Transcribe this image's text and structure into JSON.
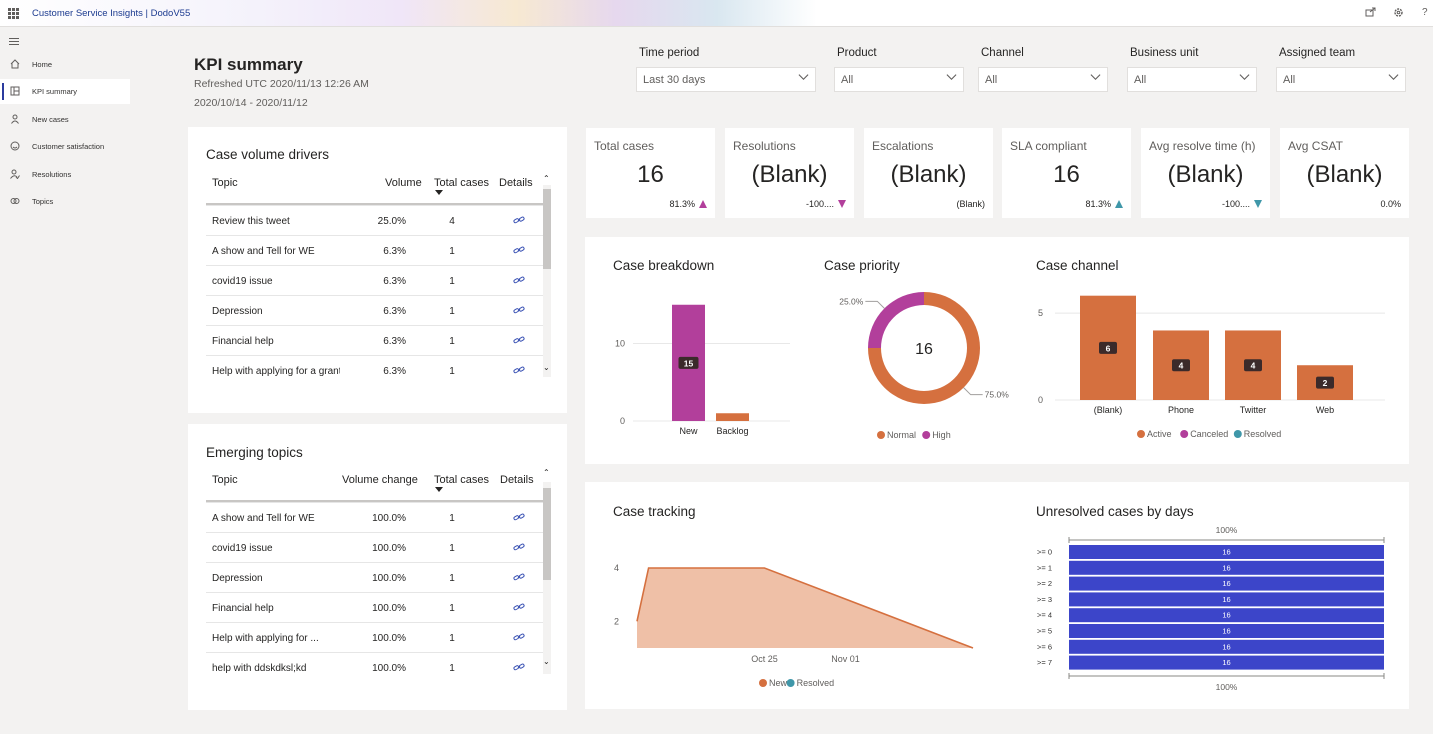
{
  "app": {
    "title": "Customer Service Insights | DodoV55",
    "icons": [
      "waffle-icon",
      "share-icon",
      "settings-icon",
      "help-icon"
    ],
    "help_glyph": "?"
  },
  "sidebar": {
    "items": [
      {
        "label": "Home",
        "icon": "home-icon",
        "active": false
      },
      {
        "label": "KPI summary",
        "icon": "dashboard-icon",
        "active": true
      },
      {
        "label": "New cases",
        "icon": "person-icon",
        "active": false
      },
      {
        "label": "Customer satisfaction",
        "icon": "smiley-icon",
        "active": false
      },
      {
        "label": "Resolutions",
        "icon": "person-check-icon",
        "active": false
      },
      {
        "label": "Topics",
        "icon": "topics-icon",
        "active": false
      }
    ]
  },
  "header": {
    "title": "KPI summary",
    "refreshed": "Refreshed UTC 2020/11/13 12:26 AM",
    "date_range": "2020/10/14 - 2020/11/12"
  },
  "filters": [
    {
      "label": "Time period",
      "value": "Last 30 days"
    },
    {
      "label": "Product",
      "value": "All"
    },
    {
      "label": "Channel",
      "value": "All"
    },
    {
      "label": "Business unit",
      "value": "All"
    },
    {
      "label": "Assigned team",
      "value": "All"
    }
  ],
  "case_volume_drivers": {
    "title": "Case volume drivers",
    "columns": [
      "Topic",
      "Volume",
      "Total cases",
      "Details"
    ],
    "rows": [
      {
        "topic": "Review this tweet",
        "volume": "25.0%",
        "total": "4"
      },
      {
        "topic": "A show and Tell for WE",
        "volume": "6.3%",
        "total": "1"
      },
      {
        "topic": "covid19 issue",
        "volume": "6.3%",
        "total": "1"
      },
      {
        "topic": "Depression",
        "volume": "6.3%",
        "total": "1"
      },
      {
        "topic": "Financial help",
        "volume": "6.3%",
        "total": "1"
      },
      {
        "topic": "Help with applying for a grant",
        "volume": "6.3%",
        "total": "1"
      }
    ]
  },
  "emerging_topics": {
    "title": "Emerging topics",
    "columns": [
      "Topic",
      "Volume change",
      "Total cases",
      "Details"
    ],
    "rows": [
      {
        "topic": "A show and Tell for WE",
        "volume": "100.0%",
        "total": "1"
      },
      {
        "topic": "covid19 issue",
        "volume": "100.0%",
        "total": "1"
      },
      {
        "topic": "Depression",
        "volume": "100.0%",
        "total": "1"
      },
      {
        "topic": "Financial help",
        "volume": "100.0%",
        "total": "1"
      },
      {
        "topic": "Help with applying for ...",
        "volume": "100.0%",
        "total": "1"
      },
      {
        "topic": "help with ddskdksl;kd",
        "volume": "100.0%",
        "total": "1"
      }
    ]
  },
  "kpis": [
    {
      "title": "Total cases",
      "value": "16",
      "trend": "81.3%",
      "arrow": "up",
      "arrow_color": "#b23f9b"
    },
    {
      "title": "Resolutions",
      "value": "(Blank)",
      "trend": "-100....",
      "arrow": "down",
      "arrow_color": "#b23f9b"
    },
    {
      "title": "Escalations",
      "value": "(Blank)",
      "trend": "(Blank)",
      "arrow": "none",
      "arrow_color": ""
    },
    {
      "title": "SLA compliant",
      "value": "16",
      "trend": "81.3%",
      "arrow": "up",
      "arrow_color": "#3f97a9"
    },
    {
      "title": "Avg resolve time (h)",
      "value": "(Blank)",
      "trend": "-100....",
      "arrow": "down",
      "arrow_color": "#3f97a9"
    },
    {
      "title": "Avg CSAT",
      "value": "(Blank)",
      "trend": "0.0%",
      "arrow": "none",
      "arrow_color": ""
    }
  ],
  "colors": {
    "orange": "#d5703f",
    "magenta": "#b23f9b",
    "teal": "#3f97a9",
    "blue_bar": "#3c45c9",
    "area_fill": "#efc0a7"
  },
  "chart_data": [
    {
      "type": "bar",
      "title": "Case breakdown",
      "categories": [
        "New",
        "Backlog"
      ],
      "values": [
        15,
        1
      ],
      "data_labels": [
        "15",
        ""
      ],
      "bar_colors": [
        "#b23f9b",
        "#d5703f"
      ],
      "yticks": [
        0,
        10
      ],
      "ylim": [
        0,
        16
      ],
      "grid": true
    },
    {
      "type": "pie",
      "title": "Case priority",
      "center_label": "16",
      "slices": [
        {
          "name": "Normal",
          "value": 75.0,
          "label": "75.0%",
          "color": "#d5703f"
        },
        {
          "name": "High",
          "value": 25.0,
          "label": "25.0%",
          "color": "#b23f9b"
        }
      ],
      "legend": [
        "Normal",
        "High"
      ],
      "legend_placement": "bottom"
    },
    {
      "type": "bar",
      "title": "Case channel",
      "categories": [
        "(Blank)",
        "Phone",
        "Twitter",
        "Web"
      ],
      "values": [
        6,
        4,
        4,
        2
      ],
      "data_labels": [
        "6",
        "4",
        "4",
        "2"
      ],
      "yticks": [
        0,
        5
      ],
      "ylim": [
        0,
        6.5
      ],
      "legend": [
        {
          "name": "Active",
          "color": "#d5703f"
        },
        {
          "name": "Canceled",
          "color": "#b23f9b"
        },
        {
          "name": "Resolved",
          "color": "#3f97a9"
        }
      ],
      "legend_placement": "bottom",
      "grid": true
    },
    {
      "type": "area",
      "title": "Case tracking",
      "x_ticks": [
        "Oct 25",
        "Nov 01"
      ],
      "x": [
        "2020-10-14",
        "2020-10-15",
        "2020-10-25",
        "2020-11-12"
      ],
      "values": [
        2,
        4,
        4,
        1
      ],
      "yticks": [
        2,
        4
      ],
      "ylim": [
        1,
        4.6
      ],
      "legend": [
        {
          "name": "New",
          "color": "#d5703f"
        },
        {
          "name": "Resolved",
          "color": "#3f97a9"
        }
      ],
      "legend_placement": "bottom"
    },
    {
      "type": "bar",
      "orientation": "horizontal",
      "title": "Unresolved cases by days",
      "categories": [
        ">= 0",
        ">= 1",
        ">= 2",
        ">= 3",
        ">= 4",
        ">= 5",
        ">= 6",
        ">= 7"
      ],
      "values": [
        16,
        16,
        16,
        16,
        16,
        16,
        16,
        16
      ],
      "data_labels": [
        "16",
        "16",
        "16",
        "16",
        "16",
        "16",
        "16",
        "16"
      ],
      "top_axis_label": "100%",
      "bottom_axis_label": "100%"
    }
  ]
}
